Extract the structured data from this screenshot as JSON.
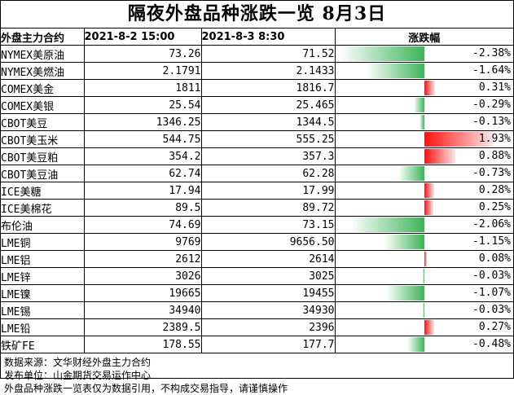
{
  "title": "隔夜外盘品种涨跌一览 8月3日",
  "header": {
    "name": "外盘主力合约",
    "date1": "2021-8-2 15:00",
    "date2": "2021-8-3 8:30",
    "change": "涨跌幅"
  },
  "rows": [
    {
      "name": "NYMEX美原油",
      "p1": "73.26",
      "p2": "71.52",
      "pct": "-2.38%",
      "v": -2.38
    },
    {
      "name": "NYMEX美燃油",
      "p1": "2.1791",
      "p2": "2.1433",
      "pct": "-1.64%",
      "v": -1.64
    },
    {
      "name": "COMEX美金",
      "p1": "1811",
      "p2": "1816.7",
      "pct": "0.31%",
      "v": 0.31
    },
    {
      "name": "COMEX美银",
      "p1": "25.54",
      "p2": "25.465",
      "pct": "-0.29%",
      "v": -0.29
    },
    {
      "name": "CBOT美豆",
      "p1": "1346.25",
      "p2": "1344.5",
      "pct": "-0.13%",
      "v": -0.13
    },
    {
      "name": "CBOT美玉米",
      "p1": "544.75",
      "p2": "555.25",
      "pct": "1.93%",
      "v": 1.93
    },
    {
      "name": "CBOT美豆粕",
      "p1": "354.2",
      "p2": "357.3",
      "pct": "0.88%",
      "v": 0.88
    },
    {
      "name": "CBOT美豆油",
      "p1": "62.74",
      "p2": "62.28",
      "pct": "-0.73%",
      "v": -0.73
    },
    {
      "name": "ICE美糖",
      "p1": "17.94",
      "p2": "17.99",
      "pct": "0.28%",
      "v": 0.28
    },
    {
      "name": "ICE美棉花",
      "p1": "89.5",
      "p2": "89.72",
      "pct": "0.25%",
      "v": 0.25
    },
    {
      "name": "布伦油",
      "p1": "74.69",
      "p2": "73.15",
      "pct": "-2.06%",
      "v": -2.06
    },
    {
      "name": "LME铜",
      "p1": "9769",
      "p2": "9656.50",
      "pct": "-1.15%",
      "v": -1.15
    },
    {
      "name": "LME铝",
      "p1": "2612",
      "p2": "2614",
      "pct": "0.08%",
      "v": 0.08
    },
    {
      "name": "LME锌",
      "p1": "3026",
      "p2": "3025",
      "pct": "-0.03%",
      "v": -0.03
    },
    {
      "name": "LME镍",
      "p1": "19665",
      "p2": "19455",
      "pct": "-1.07%",
      "v": -1.07
    },
    {
      "name": "LME锡",
      "p1": "34940",
      "p2": "34930",
      "pct": "-0.03%",
      "v": -0.03
    },
    {
      "name": "LME铅",
      "p1": "2389.5",
      "p2": "2396",
      "pct": "0.27%",
      "v": 0.27
    },
    {
      "name": "铁矿FE",
      "p1": "178.55",
      "p2": "177.7",
      "pct": "-0.48%",
      "v": -0.48
    }
  ],
  "notes": [
    "数据来源：文华财经外盘主力合约",
    "发布单位：山金期货交易运作中心",
    "外盘品种涨跌一览表仅为数据引用，不构成交易指导，请谨慎操作"
  ],
  "colors": {
    "down": "#3cb45a",
    "up": "#ff1010"
  }
}
